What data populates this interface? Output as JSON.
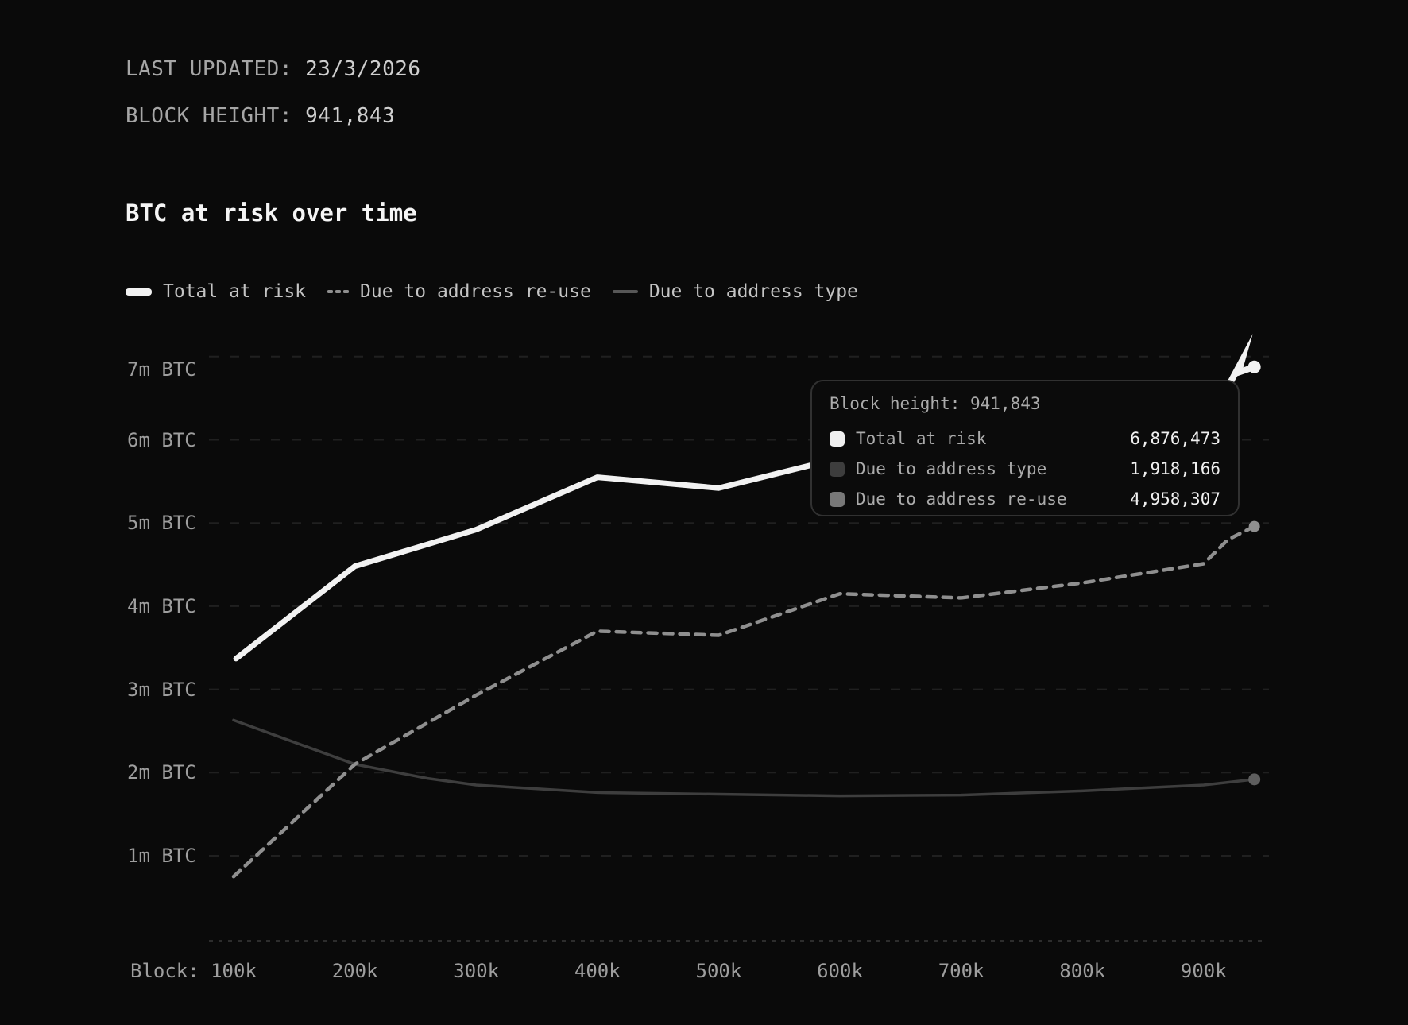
{
  "header": {
    "last_updated": {
      "label": "LAST UPDATED: ",
      "value": "23/3/2026"
    },
    "block_height": {
      "label": "BLOCK HEIGHT: ",
      "value": "941,843"
    }
  },
  "title": "BTC at risk over time",
  "legend": [
    {
      "label": "Total at risk",
      "marker": "thick-dash",
      "color": "#f2f2f2"
    },
    {
      "label": "Due to address re-use",
      "marker": "dotted",
      "color": "#8f8f8f"
    },
    {
      "label": "Due to address type",
      "marker": "thin-line",
      "color": "#575757"
    }
  ],
  "tooltip": {
    "header_label": "Block height: ",
    "header_value": "941,843",
    "rows": [
      {
        "label": "Total at risk",
        "value": "6,876,473",
        "swatch": "#f0f0f0"
      },
      {
        "label": "Due to address type",
        "value": "1,918,166",
        "swatch": "#3d3d3d"
      },
      {
        "label": "Due to address re-use",
        "value": "4,958,307",
        "swatch": "#787878"
      }
    ]
  },
  "chart_data": {
    "type": "line",
    "title": "BTC at risk over time",
    "xlabel": "Block height",
    "ylabel": "BTC",
    "x_prefix": "Block:",
    "grid": "horizontal-dashed",
    "legend_position": "top-left",
    "hover_block": 941843,
    "xlim_blocks": [
      80000,
      954000
    ],
    "ylim_btc": [
      0,
      7060000
    ],
    "x_ticks": [
      {
        "label": "100k",
        "block": 100000
      },
      {
        "label": "200k",
        "block": 200000
      },
      {
        "label": "300k",
        "block": 300000
      },
      {
        "label": "400k",
        "block": 400000
      },
      {
        "label": "500k",
        "block": 500000
      },
      {
        "label": "600k",
        "block": 600000
      },
      {
        "label": "700k",
        "block": 700000
      },
      {
        "label": "800k",
        "block": 800000
      },
      {
        "label": "900k",
        "block": 900000
      }
    ],
    "y_ticks": [
      {
        "label": "7m BTC",
        "value": 7000000
      },
      {
        "label": "6m BTC",
        "value": 6000000
      },
      {
        "label": "5m BTC",
        "value": 5000000
      },
      {
        "label": "4m BTC",
        "value": 4000000
      },
      {
        "label": "3m BTC",
        "value": 3000000
      },
      {
        "label": "2m BTC",
        "value": 2000000
      },
      {
        "label": "1m BTC",
        "value": 1000000
      }
    ],
    "series": [
      {
        "name": "Total at risk",
        "style": "solid-thick",
        "color": "#f2f2f2",
        "end_marker": "circle",
        "end_marker_color": "#f2f2f2",
        "end_decoration": "bolt",
        "points": [
          [
            102000,
            3370000
          ],
          [
            200000,
            4480000
          ],
          [
            300000,
            4920000
          ],
          [
            400000,
            5550000
          ],
          [
            500000,
            5420000
          ],
          [
            600000,
            5780000
          ],
          [
            700000,
            6000000
          ],
          [
            800000,
            6220000
          ],
          [
            900000,
            6450000
          ],
          [
            941843,
            6876473
          ]
        ]
      },
      {
        "name": "Due to address re-use",
        "style": "dashed",
        "color": "#8f8f8f",
        "end_marker": "circle",
        "end_marker_color": "#8f8f8f",
        "points": [
          [
            100000,
            750000
          ],
          [
            200000,
            2100000
          ],
          [
            300000,
            2930000
          ],
          [
            400000,
            3700000
          ],
          [
            500000,
            3650000
          ],
          [
            600000,
            4150000
          ],
          [
            700000,
            4100000
          ],
          [
            800000,
            4280000
          ],
          [
            900000,
            4510000
          ],
          [
            920000,
            4800000
          ],
          [
            941843,
            4958307
          ]
        ]
      },
      {
        "name": "Due to address type",
        "style": "solid-thin",
        "color": "#3e3e3e",
        "end_marker": "circle",
        "end_marker_color": "#5e5e5e",
        "points": [
          [
            100000,
            2630000
          ],
          [
            200000,
            2100000
          ],
          [
            260000,
            1930000
          ],
          [
            300000,
            1850000
          ],
          [
            400000,
            1760000
          ],
          [
            500000,
            1740000
          ],
          [
            600000,
            1720000
          ],
          [
            700000,
            1730000
          ],
          [
            800000,
            1780000
          ],
          [
            900000,
            1850000
          ],
          [
            941843,
            1918166
          ]
        ]
      }
    ]
  },
  "colors": {
    "background": "#0a0a0a",
    "grid": "#202020",
    "axis_line": "#2d2d2d",
    "axis_text": "#9e9e9e",
    "header_label": "#a6a6a6",
    "header_value": "#cfcfcf",
    "title": "#f5f5f5",
    "legend_text": "#c4c4c4",
    "tooltip_border": "#313131",
    "tooltip_bg": "#0b0b0b",
    "tooltip_label": "#ababab",
    "tooltip_value": "#f0f0f0"
  }
}
